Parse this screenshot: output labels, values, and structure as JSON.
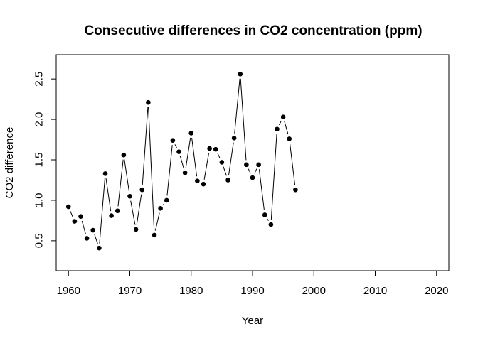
{
  "chart_data": {
    "type": "line",
    "title": "Consecutive differences in CO2 concentration (ppm)",
    "xlabel": "Year",
    "ylabel": "CO2 difference",
    "xlim": [
      1958,
      2022
    ],
    "ylim": [
      0.13,
      2.8
    ],
    "xticks": [
      1960,
      1970,
      1980,
      1990,
      2000,
      2010,
      2020
    ],
    "yticks": [
      0.5,
      1.0,
      1.5,
      2.0,
      2.5
    ],
    "ytick_labels": [
      "0.5",
      "1.0",
      "1.5",
      "2.0",
      "2.5"
    ],
    "grid": false,
    "series": [
      {
        "x": [
          1960,
          1961,
          1962,
          1963,
          1964,
          1965,
          1966,
          1967,
          1968,
          1969,
          1970,
          1971,
          1972,
          1973,
          1974,
          1975,
          1976,
          1977,
          1978,
          1979,
          1980,
          1981,
          1982,
          1983,
          1984,
          1985,
          1986,
          1987,
          1988,
          1989,
          1990,
          1991,
          1992,
          1993,
          1994,
          1995,
          1996,
          1997
        ],
        "y": [
          0.92,
          0.74,
          0.8,
          0.53,
          0.63,
          0.41,
          1.33,
          0.81,
          0.87,
          1.56,
          1.05,
          0.64,
          1.13,
          2.21,
          0.57,
          0.9,
          1.0,
          1.74,
          1.6,
          1.34,
          1.83,
          1.24,
          1.2,
          1.64,
          1.63,
          1.47,
          1.25,
          1.77,
          2.56,
          1.44,
          1.28,
          1.44,
          0.82,
          0.7,
          1.88,
          2.03,
          1.76,
          1.13
        ]
      }
    ]
  }
}
